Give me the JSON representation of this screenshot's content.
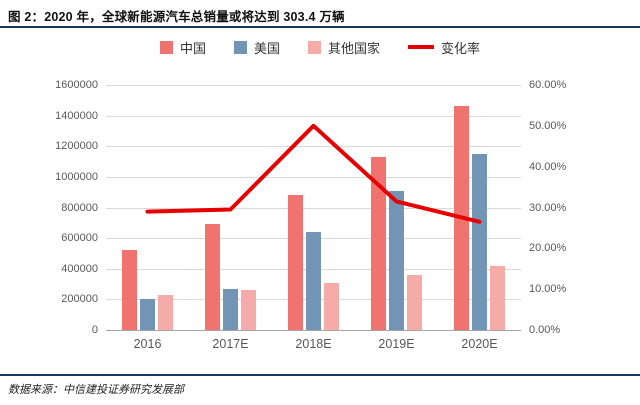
{
  "header": {
    "title": "图 2：2020 年，全球新能源汽车总销量或将达到 303.4 万辆"
  },
  "footer": {
    "source": "数据来源：中信建投证券研究发展部"
  },
  "chart_data": {
    "type": "bar",
    "subtype": "grouped bars with overlay line",
    "categories": [
      "2016",
      "2017E",
      "2018E",
      "2019E",
      "2020E"
    ],
    "series": [
      {
        "name": "中国",
        "type": "bar",
        "color": "#f0736f",
        "axis": "left",
        "values": [
          520000,
          690000,
          880000,
          1130000,
          1460000
        ]
      },
      {
        "name": "美国",
        "type": "bar",
        "color": "#7295b5",
        "axis": "left",
        "values": [
          200000,
          270000,
          640000,
          910000,
          1150000
        ]
      },
      {
        "name": "其他国家",
        "type": "bar",
        "color": "#f5aba8",
        "axis": "left",
        "values": [
          230000,
          260000,
          310000,
          360000,
          420000
        ]
      },
      {
        "name": "变化率",
        "type": "line",
        "color": "#e60000",
        "axis": "right",
        "values": [
          29.0,
          29.5,
          50.0,
          31.5,
          26.5
        ]
      }
    ],
    "left_axis": {
      "min": 0,
      "max": 1600000,
      "step": 200000,
      "ticks": [
        "0",
        "200000",
        "400000",
        "600000",
        "800000",
        "1000000",
        "1200000",
        "1400000",
        "1600000"
      ]
    },
    "right_axis": {
      "min": 0,
      "max": 60,
      "step": 10,
      "ticks": [
        "0.00%",
        "10.00%",
        "20.00%",
        "30.00%",
        "40.00%",
        "50.00%",
        "60.00%"
      ]
    },
    "legend_position": "top",
    "grid": true,
    "title": "",
    "xlabel": "",
    "ylabel": ""
  }
}
